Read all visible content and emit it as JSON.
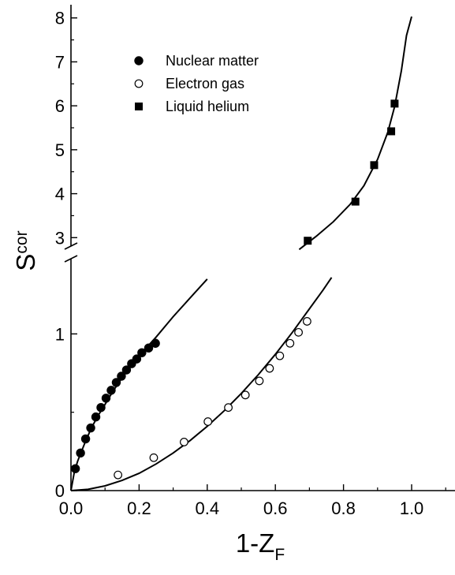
{
  "chart_data": {
    "type": "scatter",
    "xlabel": {
      "main": "1-Z",
      "sub": "F"
    },
    "ylabel": {
      "main": "S",
      "sub": "cor"
    },
    "xlim": [
      0,
      1.08
    ],
    "x_ticks": [
      "0.0",
      "0.2",
      "0.4",
      "0.6",
      "0.8",
      "1.0"
    ],
    "x_tick_values": [
      0.0,
      0.2,
      0.4,
      0.6,
      0.8,
      1.0
    ],
    "y_axis_broken": true,
    "y_lower_range": [
      0,
      1.5
    ],
    "y_lower_ticks": [
      "0",
      "1"
    ],
    "y_lower_tick_values": [
      0,
      1
    ],
    "y_upper_range": [
      2.7,
      8.3
    ],
    "y_upper_ticks": [
      "3",
      "4",
      "5",
      "6",
      "7",
      "8"
    ],
    "y_upper_tick_values": [
      3,
      4,
      5,
      6,
      7,
      8
    ],
    "legend": {
      "placement": "top-left",
      "entries": [
        {
          "label": "Nuclear matter",
          "marker": "filled-circle"
        },
        {
          "label": "Electron gas",
          "marker": "open-circle"
        },
        {
          "label": "Liquid helium",
          "marker": "filled-square"
        }
      ]
    },
    "series": [
      {
        "name": "Nuclear matter",
        "marker": "filled-circle",
        "points": [
          [
            0.013,
            0.14
          ],
          [
            0.028,
            0.24
          ],
          [
            0.043,
            0.33
          ],
          [
            0.058,
            0.4
          ],
          [
            0.073,
            0.47
          ],
          [
            0.088,
            0.53
          ],
          [
            0.103,
            0.59
          ],
          [
            0.118,
            0.64
          ],
          [
            0.133,
            0.69
          ],
          [
            0.148,
            0.73
          ],
          [
            0.163,
            0.77
          ],
          [
            0.178,
            0.81
          ],
          [
            0.193,
            0.84
          ],
          [
            0.208,
            0.88
          ],
          [
            0.228,
            0.91
          ],
          [
            0.248,
            0.94
          ]
        ],
        "fit": [
          [
            0.0,
            0.0
          ],
          [
            0.01,
            0.12
          ],
          [
            0.02,
            0.19
          ],
          [
            0.04,
            0.3
          ],
          [
            0.06,
            0.4
          ],
          [
            0.08,
            0.48
          ],
          [
            0.1,
            0.55
          ],
          [
            0.125,
            0.64
          ],
          [
            0.15,
            0.72
          ],
          [
            0.2,
            0.86
          ],
          [
            0.25,
            0.98
          ],
          [
            0.3,
            1.11
          ],
          [
            0.35,
            1.23
          ],
          [
            0.4,
            1.35
          ]
        ]
      },
      {
        "name": "Electron gas",
        "marker": "open-circle",
        "points": [
          [
            0.138,
            0.1
          ],
          [
            0.243,
            0.21
          ],
          [
            0.332,
            0.31
          ],
          [
            0.402,
            0.44
          ],
          [
            0.462,
            0.53
          ],
          [
            0.512,
            0.61
          ],
          [
            0.553,
            0.7
          ],
          [
            0.583,
            0.78
          ],
          [
            0.613,
            0.86
          ],
          [
            0.643,
            0.94
          ],
          [
            0.668,
            1.01
          ],
          [
            0.693,
            1.08
          ]
        ],
        "fit": [
          [
            0.0,
            0.0
          ],
          [
            0.05,
            0.008
          ],
          [
            0.1,
            0.03
          ],
          [
            0.15,
            0.065
          ],
          [
            0.2,
            0.11
          ],
          [
            0.25,
            0.17
          ],
          [
            0.3,
            0.24
          ],
          [
            0.35,
            0.32
          ],
          [
            0.4,
            0.41
          ],
          [
            0.45,
            0.51
          ],
          [
            0.5,
            0.62
          ],
          [
            0.55,
            0.74
          ],
          [
            0.6,
            0.87
          ],
          [
            0.65,
            1.01
          ],
          [
            0.7,
            1.16
          ],
          [
            0.74,
            1.28
          ],
          [
            0.765,
            1.36
          ]
        ]
      },
      {
        "name": "Liquid helium",
        "marker": "filled-square",
        "points": [
          [
            0.695,
            2.93
          ],
          [
            0.835,
            3.82
          ],
          [
            0.89,
            4.65
          ],
          [
            0.94,
            5.42
          ],
          [
            0.95,
            6.05
          ]
        ],
        "fit": [
          [
            0.67,
            2.73
          ],
          [
            0.72,
            3.03
          ],
          [
            0.77,
            3.36
          ],
          [
            0.82,
            3.76
          ],
          [
            0.86,
            4.18
          ],
          [
            0.9,
            4.78
          ],
          [
            0.93,
            5.4
          ],
          [
            0.95,
            5.98
          ],
          [
            0.97,
            6.8
          ],
          [
            0.985,
            7.6
          ],
          [
            1.0,
            8.03
          ]
        ]
      }
    ]
  }
}
